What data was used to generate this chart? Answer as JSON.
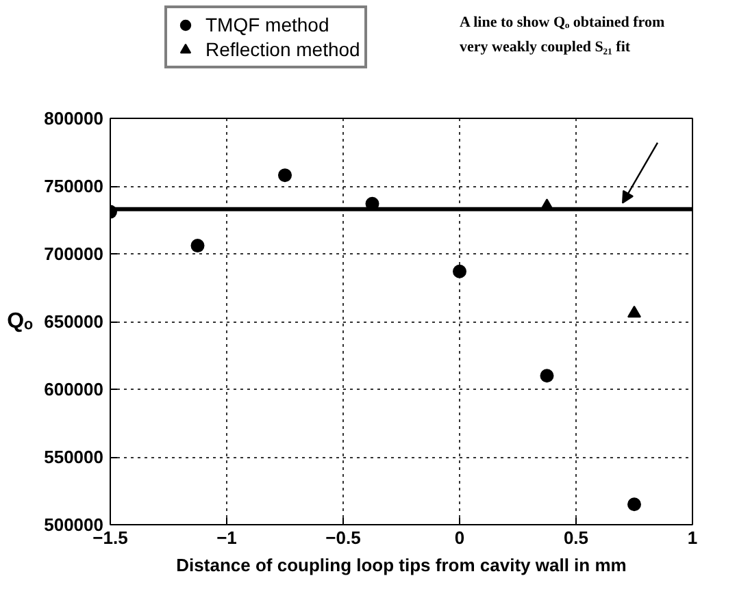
{
  "chart_data": {
    "type": "scatter",
    "xlabel": "Distance of coupling loop tips from cavity wall in mm",
    "ylabel": "Qₒ",
    "series": [
      {
        "name": "TMQF method",
        "color": "#000000",
        "marker": "circle",
        "x": [
          -1.5,
          -1.125,
          -0.75,
          -0.375,
          0,
          0.375,
          0.75
        ],
        "values": [
          731000,
          706000,
          758000,
          737000,
          687000,
          610000,
          515000
        ]
      },
      {
        "name": "Reflection method",
        "color": "#000000",
        "marker": "triangle",
        "x": [
          0.375,
          0.75
        ],
        "values": [
          735000,
          656000
        ]
      }
    ],
    "ref_lines": [
      {
        "axis": "y",
        "value": 733000,
        "color": "#000000",
        "line_style": "solid"
      }
    ],
    "annotations": [
      "A line to show Qₒ obtained from very weakly coupled S₂₁ fit"
    ],
    "xlim": [
      -1.5,
      1
    ],
    "xticks": [
      -1.5,
      -1,
      -0.5,
      0,
      0.5,
      1
    ],
    "ylim": [
      500000,
      800000
    ],
    "yticks": [
      500000,
      550000,
      600000,
      650000,
      700000,
      750000,
      800000
    ],
    "grid": true,
    "legend": "top left"
  }
}
